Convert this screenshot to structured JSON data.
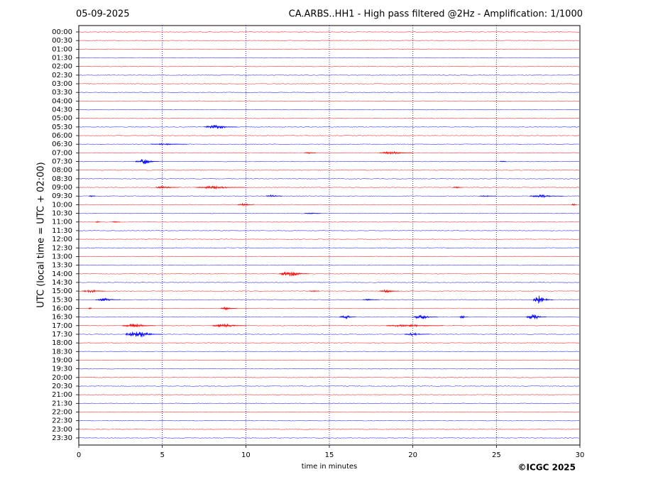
{
  "chart_data": {
    "type": "helicorder",
    "date": "05-09-2025",
    "title": "CA.ARBS..HH1 - High pass filtered @2Hz - Amplification: 1/1000",
    "ylabel": "UTC (local time = UTC + 02:00)",
    "xlabel": "time in minutes",
    "copyright": "©ICGC 2025",
    "xlim": [
      0,
      30
    ],
    "xticks": [
      0,
      5,
      10,
      15,
      20,
      25,
      30
    ],
    "grid": true,
    "grid_color": "#00008b",
    "rows": [
      {
        "label": "00:00",
        "color": "#ff0000",
        "events": []
      },
      {
        "label": "00:30",
        "color": "#ff0000",
        "events": []
      },
      {
        "label": "01:00",
        "color": "#ff0000",
        "events": []
      },
      {
        "label": "01:30",
        "color": "#0000ff",
        "events": []
      },
      {
        "label": "02:00",
        "color": "#ff0000",
        "events": []
      },
      {
        "label": "02:30",
        "color": "#0000ff",
        "events": []
      },
      {
        "label": "03:00",
        "color": "#ff0000",
        "events": []
      },
      {
        "label": "03:30",
        "color": "#0000ff",
        "events": []
      },
      {
        "label": "04:00",
        "color": "#ff0000",
        "events": []
      },
      {
        "label": "04:30",
        "color": "#0000ff",
        "events": []
      },
      {
        "label": "05:00",
        "color": "#ff0000",
        "events": []
      },
      {
        "label": "05:30",
        "color": "#0000ff",
        "events": [
          {
            "start": 7.5,
            "end": 9.5,
            "amp": 3
          }
        ]
      },
      {
        "label": "06:00",
        "color": "#ff0000",
        "events": []
      },
      {
        "label": "06:30",
        "color": "#0000ff",
        "events": [
          {
            "start": 4.3,
            "end": 6.5,
            "amp": 1
          }
        ]
      },
      {
        "label": "07:00",
        "color": "#ff0000",
        "events": [
          {
            "start": 13.5,
            "end": 14.2,
            "amp": 1
          },
          {
            "start": 18,
            "end": 20,
            "amp": 2
          }
        ]
      },
      {
        "label": "07:30",
        "color": "#0000ff",
        "events": [
          {
            "start": 3.4,
            "end": 4.8,
            "amp": 4
          },
          {
            "start": 25.2,
            "end": 25.6,
            "amp": 1
          }
        ]
      },
      {
        "label": "08:00",
        "color": "#ff0000",
        "events": []
      },
      {
        "label": "08:30",
        "color": "#0000ff",
        "events": []
      },
      {
        "label": "09:00",
        "color": "#ff0000",
        "events": [
          {
            "start": 4.6,
            "end": 6,
            "amp": 2
          },
          {
            "start": 7,
            "end": 10,
            "amp": 2
          },
          {
            "start": 22.4,
            "end": 23,
            "amp": 1
          }
        ]
      },
      {
        "label": "09:30",
        "color": "#0000ff",
        "events": [
          {
            "start": 0.6,
            "end": 1,
            "amp": 1
          },
          {
            "start": 11.2,
            "end": 12.2,
            "amp": 2
          },
          {
            "start": 24,
            "end": 25,
            "amp": 1
          },
          {
            "start": 27,
            "end": 29,
            "amp": 2
          }
        ]
      },
      {
        "label": "10:00",
        "color": "#ff0000",
        "events": [
          {
            "start": 9.5,
            "end": 10.5,
            "amp": 2
          },
          {
            "start": 29.5,
            "end": 29.8,
            "amp": 2
          }
        ]
      },
      {
        "label": "10:30",
        "color": "#0000ff",
        "events": [
          {
            "start": 13.5,
            "end": 14.5,
            "amp": 1
          }
        ]
      },
      {
        "label": "11:00",
        "color": "#ff0000",
        "events": [
          {
            "start": 1,
            "end": 1.3,
            "amp": 1
          },
          {
            "start": 2,
            "end": 2.5,
            "amp": 1
          }
        ]
      },
      {
        "label": "11:30",
        "color": "#0000ff",
        "events": []
      },
      {
        "label": "12:00",
        "color": "#ff0000",
        "events": []
      },
      {
        "label": "12:30",
        "color": "#0000ff",
        "events": []
      },
      {
        "label": "13:00",
        "color": "#ff0000",
        "events": []
      },
      {
        "label": "13:30",
        "color": "#0000ff",
        "events": []
      },
      {
        "label": "14:00",
        "color": "#ff0000",
        "events": [
          {
            "start": 12,
            "end": 13.8,
            "amp": 4
          }
        ]
      },
      {
        "label": "14:30",
        "color": "#0000ff",
        "events": []
      },
      {
        "label": "15:00",
        "color": "#ff0000",
        "events": [
          {
            "start": 0.2,
            "end": 1.6,
            "amp": 2
          },
          {
            "start": 13.8,
            "end": 14.4,
            "amp": 1
          },
          {
            "start": 18,
            "end": 19.2,
            "amp": 2
          }
        ]
      },
      {
        "label": "15:30",
        "color": "#0000ff",
        "events": [
          {
            "start": 1,
            "end": 2.5,
            "amp": 2
          },
          {
            "start": 17,
            "end": 18,
            "amp": 1
          },
          {
            "start": 27.2,
            "end": 28.4,
            "amp": 6
          }
        ]
      },
      {
        "label": "16:00",
        "color": "#ff0000",
        "events": [
          {
            "start": 0.6,
            "end": 0.8,
            "amp": 2
          },
          {
            "start": 8.5,
            "end": 9.5,
            "amp": 2
          }
        ]
      },
      {
        "label": "16:30",
        "color": "#0000ff",
        "events": [
          {
            "start": 15.6,
            "end": 16.6,
            "amp": 3
          },
          {
            "start": 20,
            "end": 21.5,
            "amp": 3
          },
          {
            "start": 22.8,
            "end": 23.3,
            "amp": 2
          },
          {
            "start": 26.8,
            "end": 28,
            "amp": 4
          }
        ]
      },
      {
        "label": "17:00",
        "color": "#ff0000",
        "events": [
          {
            "start": 2.6,
            "end": 4.6,
            "amp": 3
          },
          {
            "start": 8,
            "end": 10,
            "amp": 3
          },
          {
            "start": 18.4,
            "end": 21.8,
            "amp": 2
          }
        ]
      },
      {
        "label": "17:30",
        "color": "#0000ff",
        "events": [
          {
            "start": 2.8,
            "end": 5,
            "amp": 5
          },
          {
            "start": 19.5,
            "end": 21,
            "amp": 2
          }
        ]
      },
      {
        "label": "18:00",
        "color": "#ff0000",
        "events": []
      },
      {
        "label": "18:30",
        "color": "#0000ff",
        "events": []
      },
      {
        "label": "19:00",
        "color": "#ff0000",
        "events": []
      },
      {
        "label": "19:30",
        "color": "#0000ff",
        "events": []
      },
      {
        "label": "20:00",
        "color": "#ff0000",
        "events": []
      },
      {
        "label": "20:30",
        "color": "#0000ff",
        "events": []
      },
      {
        "label": "21:00",
        "color": "#ff0000",
        "events": []
      },
      {
        "label": "21:30",
        "color": "#0000ff",
        "events": []
      },
      {
        "label": "22:00",
        "color": "#ff0000",
        "events": []
      },
      {
        "label": "22:30",
        "color": "#0000ff",
        "events": []
      },
      {
        "label": "23:00",
        "color": "#ff0000",
        "events": []
      },
      {
        "label": "23:30",
        "color": "#0000ff",
        "events": []
      }
    ]
  }
}
